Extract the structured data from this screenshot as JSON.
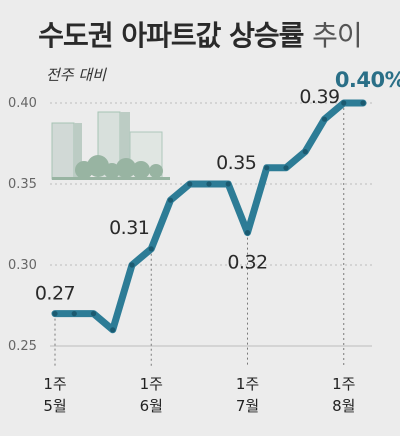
{
  "header": {
    "title_main": "수도권 아파트값 상승률",
    "title_suffix": "추이",
    "subtitle": "전주 대비"
  },
  "colors": {
    "line": "#2d7c96",
    "line_dark": "#1b5a70",
    "grid": "#bdbdbd",
    "background": "#ececec",
    "building_tint": "#9fbfae"
  },
  "chart_data": {
    "type": "line",
    "title": "수도권 아파트값 상승률 추이",
    "subtitle": "전주 대비",
    "ylim": [
      0.25,
      0.41
    ],
    "y_ticks": [
      "0.25",
      "0.30",
      "0.35",
      "0.40"
    ],
    "x_ticks": [
      {
        "index": 0,
        "label": [
          "1주",
          "5월"
        ]
      },
      {
        "index": 5,
        "label": [
          "1주",
          "6월"
        ]
      },
      {
        "index": 10,
        "label": [
          "1주",
          "7월"
        ]
      },
      {
        "index": 15,
        "label": [
          "1주",
          "8월"
        ]
      }
    ],
    "series": [
      {
        "values": [
          0.27,
          0.27,
          0.27,
          0.26,
          0.3,
          0.31,
          0.34,
          0.35,
          0.35,
          0.35,
          0.32,
          0.36,
          0.36,
          0.37,
          0.39,
          0.4,
          0.4
        ]
      }
    ],
    "data_labels": [
      {
        "index": 0,
        "text": "0.27"
      },
      {
        "index": 5,
        "text": "0.31"
      },
      {
        "index": 9,
        "text": "0.35"
      },
      {
        "index": 10,
        "text": "0.32"
      },
      {
        "index": 14,
        "text": "0.39"
      },
      {
        "index": 16,
        "text": "0.40%"
      }
    ],
    "grid": true
  }
}
